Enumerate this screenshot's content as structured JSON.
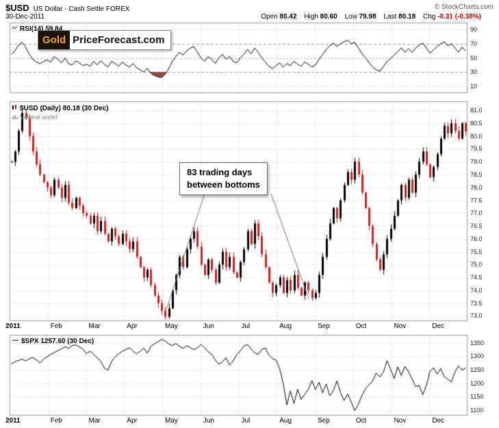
{
  "header": {
    "symbol": "$USD",
    "description": "US Dollar - Cash Settle FOREX",
    "date": "30-Dec-2011",
    "copyright": "© StockCharts.com",
    "quote": {
      "open_label": "Open",
      "open_value": "80.42",
      "high_label": "High",
      "high_value": "80.60",
      "low_label": "Low",
      "low_value": "79.98",
      "last_label": "Last",
      "last_value": "80.18",
      "chg_label": "Chg",
      "chg_value": "-0.31 (-0.38%)"
    }
  },
  "logo": {
    "gold": "Gold",
    "rest": "PriceForecast.com"
  },
  "annotation": {
    "text_line1": "83 trading days",
    "text_line2": "between bottoms"
  },
  "panels": {
    "rsi": {
      "label": "RSI(14) 59.84",
      "ticks": [
        "90",
        "70",
        "50",
        "30",
        "10"
      ]
    },
    "main": {
      "label": "$USD (Daily) 80.18 (30 Dec)",
      "volume_label": "Volume undef",
      "ticks": [
        "81.0",
        "80.5",
        "80.0",
        "79.5",
        "79.0",
        "78.5",
        "78.0",
        "77.5",
        "77.0",
        "76.5",
        "76.0",
        "75.5",
        "75.0",
        "74.5",
        "74.0",
        "73.5",
        "73.0"
      ]
    },
    "spx": {
      "label": "$SPX 1257.60 (30 Dec)",
      "ticks": [
        "1350",
        "1300",
        "1250",
        "1200",
        "1150",
        "1100"
      ]
    }
  },
  "x_axis": {
    "labels": [
      "2011",
      "Feb",
      "Mar",
      "Apr",
      "May",
      "Jun",
      "Jul",
      "Aug",
      "Sep",
      "Oct",
      "Nov",
      "Dec"
    ]
  },
  "colors": {
    "up": "#000000",
    "down": "#CC2222",
    "grid": "#C8C8C8",
    "band": "#999999",
    "border": "#9A9A9A",
    "rsi_fill": "#A04848",
    "line": "#000000",
    "chg_negative": "#CC0000",
    "gold": "#E8A33D",
    "logo_bg": "#1d1206",
    "arrow": "#777777"
  },
  "chart_data": [
    {
      "type": "line",
      "title": "RSI(14)",
      "ylim": [
        0,
        100
      ],
      "tick_values": [
        90,
        70,
        50,
        30,
        10
      ],
      "overbought_line": 70,
      "midline": 50,
      "oversold_line": 30,
      "last_value": 59.84,
      "x_range": "Jan-2011 to Dec-2011",
      "values": [
        55,
        60,
        68,
        72,
        65,
        55,
        48,
        44,
        42,
        45,
        47,
        44,
        52,
        48,
        43,
        50,
        42,
        40,
        46,
        43,
        39,
        41,
        38,
        45,
        40,
        46,
        41,
        37,
        45,
        42,
        38,
        44,
        40,
        37,
        42,
        36,
        33,
        30,
        35,
        28,
        25,
        23,
        22,
        27,
        35,
        45,
        52,
        58,
        54,
        60,
        64,
        66,
        58,
        50,
        45,
        52,
        48,
        42,
        50,
        55,
        48,
        52,
        45,
        43,
        50,
        55,
        62,
        56,
        64,
        58,
        50,
        44,
        38,
        35,
        39,
        43,
        37,
        42,
        39,
        45,
        41,
        38,
        44,
        41,
        37,
        40,
        48,
        55,
        62,
        67,
        71,
        66,
        70,
        73,
        75,
        70,
        72,
        64,
        56,
        50,
        43,
        37,
        33,
        31,
        38,
        45,
        49,
        54,
        59,
        64,
        58,
        63,
        58,
        64,
        68,
        71,
        64,
        57,
        61,
        66,
        70,
        73,
        67,
        70,
        64,
        58,
        65,
        59.84
      ]
    },
    {
      "type": "candlestick",
      "title": "$USD Daily",
      "ylim": [
        72.8,
        81.35
      ],
      "tick_values": [
        81.0,
        80.5,
        80.0,
        79.5,
        79.0,
        78.5,
        78.0,
        77.5,
        77.0,
        76.5,
        76.0,
        75.5,
        75.0,
        74.5,
        74.0,
        73.5,
        73.0
      ],
      "last_value": 80.18,
      "annotation": "83 trading days between bottoms",
      "bottom_1": "early May 2011 ~72.97",
      "bottom_2": "late Aug 2011 ~73.7",
      "x_range": "Jan-2011 to Dec-2011",
      "closes": [
        79.0,
        79.4,
        80.2,
        80.9,
        80.7,
        80.0,
        79.4,
        78.9,
        78.5,
        78.2,
        78.0,
        77.7,
        78.3,
        78.0,
        77.6,
        78.1,
        77.4,
        77.2,
        77.6,
        77.3,
        77.0,
        76.9,
        76.6,
        76.9,
        76.3,
        76.7,
        76.2,
        75.9,
        76.4,
        76.1,
        75.8,
        76.2,
        75.9,
        75.6,
        75.9,
        75.3,
        74.9,
        74.5,
        74.8,
        74.2,
        73.8,
        73.5,
        73.2,
        72.97,
        73.3,
        74.0,
        74.6,
        75.3,
        74.9,
        75.6,
        76.0,
        76.3,
        75.7,
        75.0,
        74.6,
        75.2,
        74.8,
        74.3,
        75.0,
        75.5,
        74.9,
        75.3,
        74.7,
        74.5,
        75.1,
        75.6,
        76.3,
        75.8,
        76.6,
        76.1,
        75.4,
        74.9,
        74.3,
        73.9,
        74.2,
        74.5,
        73.9,
        74.4,
        74.0,
        74.6,
        74.1,
        73.8,
        74.3,
        74.0,
        73.7,
        73.9,
        74.6,
        75.3,
        76.0,
        76.6,
        77.2,
        76.8,
        77.5,
        78.1,
        78.6,
        78.3,
        79.0,
        78.5,
        77.8,
        77.2,
        76.5,
        75.8,
        75.2,
        74.8,
        75.4,
        76.0,
        76.4,
        76.9,
        77.5,
        78.1,
        77.6,
        78.3,
        77.8,
        78.5,
        79.0,
        79.4,
        78.9,
        78.4,
        78.8,
        79.3,
        79.9,
        80.4,
        80.1,
        80.5,
        80.2,
        79.9,
        80.5,
        80.18
      ]
    },
    {
      "type": "line",
      "title": "$SPX",
      "ylim": [
        1080,
        1380
      ],
      "tick_values": [
        1350,
        1300,
        1250,
        1200,
        1150,
        1100
      ],
      "last_value": 1257.6,
      "x_range": "Jan-2011 to Dec-2011",
      "values": [
        1272,
        1280,
        1285,
        1290,
        1283,
        1291,
        1296,
        1287,
        1276,
        1290,
        1299,
        1307,
        1315,
        1321,
        1328,
        1336,
        1330,
        1340,
        1343,
        1336,
        1327,
        1310,
        1320,
        1308,
        1295,
        1282,
        1257,
        1249,
        1281,
        1298,
        1310,
        1319,
        1326,
        1332,
        1320,
        1310,
        1319,
        1331,
        1312,
        1337,
        1347,
        1355,
        1363,
        1357,
        1346,
        1340,
        1348,
        1337,
        1330,
        1340,
        1333,
        1325,
        1331,
        1345,
        1332,
        1317,
        1308,
        1287,
        1271,
        1280,
        1295,
        1268,
        1283,
        1307,
        1320,
        1339,
        1344,
        1327,
        1313,
        1308,
        1326,
        1331,
        1305,
        1292,
        1286,
        1254,
        1200,
        1120,
        1172,
        1125,
        1178,
        1140,
        1159,
        1177,
        1210,
        1177,
        1204,
        1165,
        1198,
        1154,
        1172,
        1209,
        1166,
        1136,
        1160,
        1131,
        1099,
        1123,
        1155,
        1180,
        1195,
        1209,
        1238,
        1224,
        1242,
        1284,
        1253,
        1218,
        1261,
        1229,
        1263,
        1244,
        1216,
        1188,
        1192,
        1158,
        1192,
        1244,
        1258,
        1234,
        1255,
        1225,
        1215,
        1205,
        1243,
        1265,
        1249,
        1257.6
      ]
    }
  ]
}
